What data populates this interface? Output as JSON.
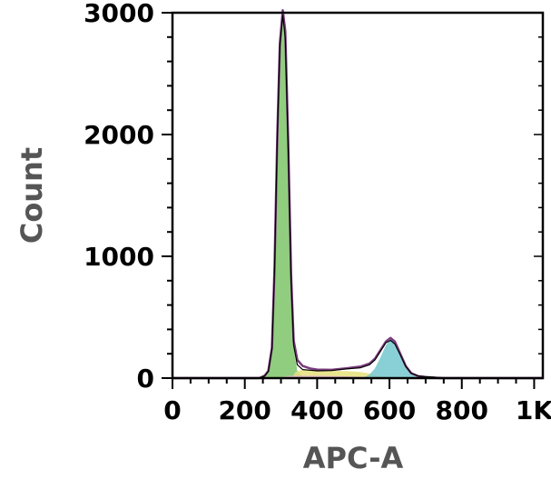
{
  "chart_data": {
    "type": "area",
    "xlabel": "APC-A",
    "ylabel": "Count",
    "xlim": [
      0,
      1024
    ],
    "ylim": [
      0,
      3000
    ],
    "x_ticks": [
      {
        "value": 0,
        "label": "0"
      },
      {
        "value": 200,
        "label": "200"
      },
      {
        "value": 400,
        "label": "400"
      },
      {
        "value": 600,
        "label": "600"
      },
      {
        "value": 800,
        "label": "800"
      },
      {
        "value": 1000,
        "label": "1K"
      }
    ],
    "y_ticks": [
      {
        "value": 0,
        "label": "0"
      },
      {
        "value": 1000,
        "label": "1000"
      },
      {
        "value": 2000,
        "label": "2000"
      },
      {
        "value": 3000,
        "label": "3000"
      }
    ],
    "grid": false,
    "series": [
      {
        "color": "#7dc467",
        "points": [
          [
            240,
            0
          ],
          [
            255,
            20
          ],
          [
            265,
            60
          ],
          [
            275,
            250
          ],
          [
            282,
            900
          ],
          [
            290,
            2000
          ],
          [
            297,
            2750
          ],
          [
            305,
            3000
          ],
          [
            312,
            2800
          ],
          [
            320,
            1900
          ],
          [
            328,
            800
          ],
          [
            335,
            250
          ],
          [
            345,
            60
          ],
          [
            360,
            15
          ],
          [
            380,
            0
          ]
        ]
      },
      {
        "color": "#e5e07a",
        "points": [
          [
            330,
            0
          ],
          [
            340,
            50
          ],
          [
            360,
            70
          ],
          [
            400,
            65
          ],
          [
            440,
            60
          ],
          [
            480,
            58
          ],
          [
            520,
            50
          ],
          [
            560,
            30
          ],
          [
            580,
            10
          ],
          [
            600,
            0
          ]
        ]
      },
      {
        "color": "#74c8cf",
        "points": [
          [
            525,
            0
          ],
          [
            545,
            30
          ],
          [
            560,
            80
          ],
          [
            575,
            170
          ],
          [
            590,
            270
          ],
          [
            603,
            320
          ],
          [
            615,
            290
          ],
          [
            630,
            180
          ],
          [
            645,
            90
          ],
          [
            660,
            30
          ],
          [
            680,
            5
          ],
          [
            700,
            0
          ]
        ]
      },
      {
        "color": "#e8b7cf",
        "points": [
          [
            230,
            0
          ],
          [
            270,
            0
          ],
          [
            300,
            10
          ],
          [
            330,
            20
          ],
          [
            400,
            20
          ],
          [
            480,
            15
          ],
          [
            540,
            10
          ],
          [
            600,
            5
          ],
          [
            700,
            0
          ]
        ]
      }
    ],
    "fit_line": {
      "color": "#7a3c7d",
      "points": [
        [
          0,
          0
        ],
        [
          240,
          0
        ],
        [
          255,
          20
        ],
        [
          265,
          60
        ],
        [
          275,
          250
        ],
        [
          282,
          900
        ],
        [
          290,
          2000
        ],
        [
          297,
          2750
        ],
        [
          305,
          3020
        ],
        [
          312,
          2850
        ],
        [
          320,
          1950
        ],
        [
          328,
          850
        ],
        [
          335,
          310
        ],
        [
          345,
          150
        ],
        [
          360,
          100
        ],
        [
          380,
          80
        ],
        [
          400,
          70
        ],
        [
          440,
          68
        ],
        [
          480,
          80
        ],
        [
          520,
          95
        ],
        [
          545,
          120
        ],
        [
          560,
          160
        ],
        [
          575,
          230
        ],
        [
          590,
          300
        ],
        [
          603,
          330
        ],
        [
          615,
          300
        ],
        [
          630,
          200
        ],
        [
          645,
          100
        ],
        [
          660,
          40
        ],
        [
          680,
          15
        ],
        [
          700,
          8
        ],
        [
          740,
          0
        ],
        [
          1024,
          0
        ]
      ]
    },
    "data_line": {
      "color": "#000000",
      "points": [
        [
          0,
          0
        ],
        [
          240,
          0
        ],
        [
          255,
          18
        ],
        [
          265,
          55
        ],
        [
          275,
          240
        ],
        [
          282,
          880
        ],
        [
          290,
          1980
        ],
        [
          297,
          2720
        ],
        [
          305,
          2980
        ],
        [
          312,
          2790
        ],
        [
          320,
          1880
        ],
        [
          328,
          790
        ],
        [
          335,
          270
        ],
        [
          345,
          110
        ],
        [
          360,
          70
        ],
        [
          380,
          65
        ],
        [
          400,
          60
        ],
        [
          440,
          62
        ],
        [
          480,
          75
        ],
        [
          520,
          85
        ],
        [
          545,
          110
        ],
        [
          560,
          150
        ],
        [
          575,
          220
        ],
        [
          590,
          290
        ],
        [
          603,
          310
        ],
        [
          615,
          280
        ],
        [
          630,
          190
        ],
        [
          645,
          95
        ],
        [
          660,
          40
        ],
        [
          680,
          18
        ],
        [
          700,
          12
        ],
        [
          740,
          5
        ],
        [
          760,
          0
        ],
        [
          1024,
          0
        ]
      ]
    }
  }
}
